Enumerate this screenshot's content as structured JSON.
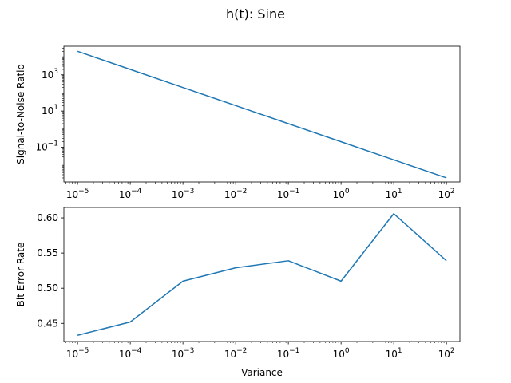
{
  "suptitle": "h(t): Sine",
  "line_color": "#1f77b4",
  "chart_data": [
    {
      "type": "line",
      "xscale": "log",
      "yscale": "log",
      "xlabel": "",
      "ylabel": "Signal-to-Noise Ratio",
      "x": [
        1e-05,
        0.0001,
        0.001,
        0.01,
        0.1,
        1,
        10,
        100
      ],
      "values": [
        20000,
        2000,
        200,
        20,
        2,
        0.2,
        0.02,
        0.002
      ],
      "xlim": [
        5.5e-06,
        180
      ],
      "ylim": [
        0.0012,
        38000
      ],
      "xticks": [
        {
          "value": 1e-05,
          "base": "10",
          "exp": "−5"
        },
        {
          "value": 0.0001,
          "base": "10",
          "exp": "−4"
        },
        {
          "value": 0.001,
          "base": "10",
          "exp": "−3"
        },
        {
          "value": 0.01,
          "base": "10",
          "exp": "−2"
        },
        {
          "value": 0.1,
          "base": "10",
          "exp": "−1"
        },
        {
          "value": 1,
          "base": "10",
          "exp": "0"
        },
        {
          "value": 10,
          "base": "10",
          "exp": "1"
        },
        {
          "value": 100,
          "base": "10",
          "exp": "2"
        }
      ],
      "yticks": [
        {
          "value": 0.1,
          "base": "10",
          "exp": "−1"
        },
        {
          "value": 10,
          "base": "10",
          "exp": "1"
        },
        {
          "value": 1000,
          "base": "10",
          "exp": "3"
        }
      ],
      "grid": false
    },
    {
      "type": "line",
      "xscale": "log",
      "yscale": "linear",
      "xlabel": "Variance",
      "ylabel": "Bit Error Rate",
      "x": [
        1e-05,
        0.0001,
        0.001,
        0.01,
        0.1,
        1,
        10,
        100
      ],
      "values": [
        0.433,
        0.452,
        0.51,
        0.529,
        0.539,
        0.51,
        0.606,
        0.539
      ],
      "xlim": [
        5.5e-06,
        180
      ],
      "ylim": [
        0.4242,
        0.6148
      ],
      "xticks": [
        {
          "value": 1e-05,
          "base": "10",
          "exp": "−5"
        },
        {
          "value": 0.0001,
          "base": "10",
          "exp": "−4"
        },
        {
          "value": 0.001,
          "base": "10",
          "exp": "−3"
        },
        {
          "value": 0.01,
          "base": "10",
          "exp": "−2"
        },
        {
          "value": 0.1,
          "base": "10",
          "exp": "−1"
        },
        {
          "value": 1,
          "base": "10",
          "exp": "0"
        },
        {
          "value": 10,
          "base": "10",
          "exp": "1"
        },
        {
          "value": 100,
          "base": "10",
          "exp": "2"
        }
      ],
      "yticks": [
        {
          "value": 0.45,
          "label": "0.45"
        },
        {
          "value": 0.5,
          "label": "0.50"
        },
        {
          "value": 0.55,
          "label": "0.55"
        },
        {
          "value": 0.6,
          "label": "0.60"
        }
      ],
      "grid": false
    }
  ]
}
